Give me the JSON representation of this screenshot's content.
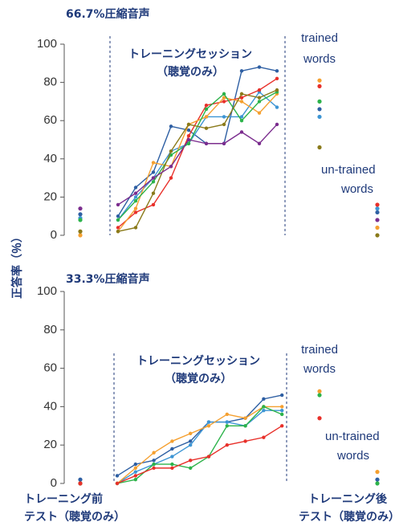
{
  "y_axis_label": "正答率（％）",
  "pre_label": [
    "トレーニング前",
    "テスト（聴覚のみ）"
  ],
  "post_label": [
    "トレーニング後",
    "テスト（聴覚のみ）"
  ],
  "chart_data": [
    {
      "type": "line",
      "title": "66.7%圧縮音声",
      "categories": [
        null,
        null,
        null,
        null,
        null,
        null,
        null,
        null,
        null,
        null,
        null,
        null,
        null
      ],
      "ylim": [
        0,
        100
      ],
      "yticks": [
        0,
        20,
        40,
        60,
        80,
        100
      ],
      "session_label": [
        "トレーニングセッション",
        "（聴覚のみ）"
      ],
      "trained_label": [
        "trained",
        "words"
      ],
      "untrained_label": [
        "un-trained",
        "words"
      ],
      "series": [
        {
          "color": "#2e5fa3",
          "values": [
            11,
            10,
            25,
            33,
            57,
            55,
            48,
            48,
            86,
            88,
            86,
            66,
            12
          ]
        },
        {
          "color": "#3d95d4",
          "values": [
            9,
            8,
            20,
            30,
            44,
            48,
            62,
            62,
            62,
            75,
            67,
            62,
            14
          ]
        },
        {
          "color": "#e8302a",
          "values": [
            null,
            4,
            12,
            16,
            30,
            52,
            68,
            70,
            72,
            76,
            82,
            78,
            16
          ]
        },
        {
          "color": "#f5a030",
          "values": [
            0,
            2,
            14,
            38,
            36,
            58,
            62,
            72,
            70,
            64,
            74,
            81,
            4
          ]
        },
        {
          "color": "#2cb34a",
          "values": [
            8,
            8,
            18,
            28,
            42,
            48,
            66,
            74,
            60,
            70,
            75,
            70,
            null
          ]
        },
        {
          "color": "#8a7a1a",
          "values": [
            2,
            2,
            4,
            22,
            44,
            58,
            56,
            58,
            74,
            72,
            76,
            46,
            0
          ]
        },
        {
          "color": "#7b2d8e",
          "values": [
            14,
            16,
            22,
            30,
            36,
            50,
            48,
            48,
            54,
            48,
            58,
            null,
            8
          ]
        }
      ]
    },
    {
      "type": "line",
      "title": "33.3%圧縮音声",
      "categories": [
        null,
        null,
        null,
        null,
        null,
        null,
        null,
        null,
        null,
        null,
        null,
        null,
        null
      ],
      "ylim": [
        0,
        100
      ],
      "yticks": [
        0,
        20,
        40,
        60,
        80,
        100
      ],
      "session_label": [
        "トレーニングセッション",
        "（聴覚のみ）"
      ],
      "trained_label": [
        "trained",
        "words"
      ],
      "untrained_label": [
        "un-trained",
        "words"
      ],
      "series": [
        {
          "color": "#2e5fa3",
          "values": [
            2,
            4,
            10,
            12,
            18,
            22,
            32,
            32,
            34,
            44,
            46,
            null,
            2
          ]
        },
        {
          "color": "#3d95d4",
          "values": [
            0,
            0,
            6,
            10,
            14,
            20,
            32,
            32,
            30,
            38,
            38,
            null,
            null
          ]
        },
        {
          "color": "#f5a030",
          "values": [
            0,
            0,
            8,
            16,
            22,
            26,
            30,
            36,
            34,
            40,
            40,
            48,
            6
          ]
        },
        {
          "color": "#2cb34a",
          "values": [
            0,
            0,
            2,
            10,
            10,
            8,
            14,
            30,
            30,
            40,
            36,
            46,
            0
          ]
        },
        {
          "color": "#e8302a",
          "values": [
            0,
            0,
            4,
            8,
            8,
            12,
            14,
            20,
            22,
            24,
            30,
            34,
            null
          ]
        }
      ]
    }
  ]
}
